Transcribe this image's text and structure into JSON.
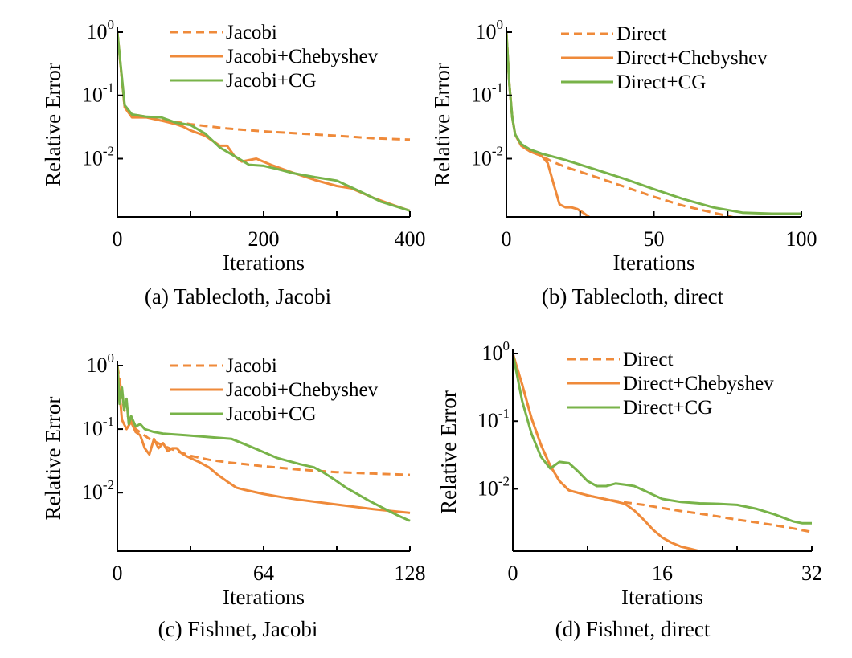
{
  "colors": {
    "orange": "#ef8a3a",
    "green": "#78b349",
    "axis": "#000000"
  },
  "chart_data": [
    {
      "type": "line",
      "caption": "(a)  Tablecloth, Jacobi",
      "xlabel": "Iterations",
      "ylabel": "Relative Error",
      "xlim": [
        0,
        400
      ],
      "ylim": [
        0.0012,
        1
      ],
      "y_scale": "log",
      "x_ticks": [
        0,
        200,
        400
      ],
      "x_minor_ticks": [
        100,
        300
      ],
      "y_ticks": [
        {
          "base": "10",
          "exp": "0",
          "value": 1
        },
        {
          "base": "10",
          "exp": "-1",
          "value": 0.1
        },
        {
          "base": "10",
          "exp": "-2",
          "value": 0.01
        }
      ],
      "grid": false,
      "legend": "top-right",
      "series": [
        {
          "name": "Jacobi",
          "style": "dashed",
          "color": "orange",
          "x": [
            0,
            10,
            20,
            40,
            60,
            80,
            100,
            150,
            200,
            250,
            300,
            350,
            400
          ],
          "y": [
            1,
            0.065,
            0.05,
            0.046,
            0.042,
            0.038,
            0.035,
            0.03,
            0.027,
            0.025,
            0.023,
            0.021,
            0.02
          ]
        },
        {
          "name": "Jacobi+Chebyshev",
          "style": "solid",
          "color": "orange",
          "x": [
            0,
            10,
            20,
            40,
            60,
            80,
            90,
            100,
            120,
            140,
            150,
            160,
            170,
            190,
            210,
            240,
            270,
            300,
            320,
            350,
            380,
            400
          ],
          "y": [
            1,
            0.065,
            0.045,
            0.045,
            0.04,
            0.035,
            0.032,
            0.028,
            0.023,
            0.016,
            0.016,
            0.011,
            0.009,
            0.01,
            0.008,
            0.006,
            0.0046,
            0.0037,
            0.0034,
            0.0024,
            0.0018,
            0.0015
          ]
        },
        {
          "name": "Jacobi+CG",
          "style": "solid",
          "color": "green",
          "x": [
            0,
            10,
            20,
            40,
            60,
            80,
            100,
            120,
            140,
            160,
            180,
            200,
            220,
            240,
            270,
            300,
            330,
            360,
            400
          ],
          "y": [
            1,
            0.07,
            0.05,
            0.046,
            0.045,
            0.037,
            0.034,
            0.025,
            0.015,
            0.011,
            0.008,
            0.0077,
            0.0068,
            0.0059,
            0.0051,
            0.0045,
            0.0031,
            0.0021,
            0.0015
          ]
        }
      ]
    },
    {
      "type": "line",
      "caption": "(b)  Tablecloth, direct",
      "xlabel": "Iterations",
      "ylabel": "Relative Error",
      "xlim": [
        0,
        100
      ],
      "ylim": [
        0.0012,
        1
      ],
      "y_scale": "log",
      "x_ticks": [
        0,
        50,
        100
      ],
      "x_minor_ticks": [
        25,
        75
      ],
      "y_ticks": [
        {
          "base": "10",
          "exp": "0",
          "value": 1
        },
        {
          "base": "10",
          "exp": "-1",
          "value": 0.1
        },
        {
          "base": "10",
          "exp": "-2",
          "value": 0.01
        }
      ],
      "grid": false,
      "legend": "top-right",
      "series": [
        {
          "name": "Direct",
          "style": "dashed",
          "color": "orange",
          "x": [
            0,
            1,
            2,
            3,
            5,
            8,
            12,
            15,
            20,
            30,
            40,
            50,
            60,
            70,
            80
          ],
          "y": [
            1,
            0.15,
            0.045,
            0.024,
            0.016,
            0.013,
            0.011,
            0.0092,
            0.0074,
            0.0052,
            0.0036,
            0.0025,
            0.0018,
            0.0014,
            0.0011
          ]
        },
        {
          "name": "Direct+Chebyshev",
          "style": "solid",
          "color": "orange",
          "x": [
            0,
            1,
            2,
            3,
            5,
            8,
            12,
            14,
            16,
            18,
            20,
            22,
            24,
            26,
            28,
            29
          ],
          "y": [
            1,
            0.15,
            0.045,
            0.024,
            0.016,
            0.013,
            0.011,
            0.0085,
            0.004,
            0.0019,
            0.0017,
            0.0017,
            0.0016,
            0.0014,
            0.0012,
            0.0011
          ]
        },
        {
          "name": "Direct+CG",
          "style": "solid",
          "color": "green",
          "x": [
            0,
            1,
            2,
            3,
            5,
            8,
            12,
            15,
            20,
            30,
            40,
            50,
            60,
            70,
            80,
            90,
            100
          ],
          "y": [
            1,
            0.15,
            0.045,
            0.024,
            0.017,
            0.014,
            0.012,
            0.011,
            0.0095,
            0.0068,
            0.0048,
            0.0033,
            0.0023,
            0.0017,
            0.0014,
            0.00135,
            0.00135
          ]
        }
      ]
    },
    {
      "type": "line",
      "caption": "(c)  Fishnet, Jacobi",
      "xlabel": "Iterations",
      "ylabel": "Relative Error",
      "xlim": [
        0,
        128
      ],
      "ylim": [
        0.0012,
        1
      ],
      "y_scale": "log",
      "x_ticks": [
        0,
        64,
        128
      ],
      "x_minor_ticks": [
        32,
        96
      ],
      "y_ticks": [
        {
          "base": "10",
          "exp": "0",
          "value": 1
        },
        {
          "base": "10",
          "exp": "-1",
          "value": 0.1
        },
        {
          "base": "10",
          "exp": "-2",
          "value": 0.01
        }
      ],
      "grid": false,
      "legend": "top-right",
      "series": [
        {
          "name": "Jacobi",
          "style": "dashed",
          "color": "orange",
          "x": [
            0,
            3,
            8,
            14,
            20,
            26,
            32,
            40,
            48,
            56,
            64,
            80,
            96,
            112,
            128
          ],
          "y": [
            1,
            0.2,
            0.1,
            0.07,
            0.055,
            0.045,
            0.038,
            0.033,
            0.03,
            0.028,
            0.026,
            0.023,
            0.021,
            0.02,
            0.019
          ]
        },
        {
          "name": "Jacobi+Chebyshev",
          "style": "solid",
          "color": "orange",
          "x": [
            0,
            2,
            4,
            6,
            8,
            10,
            12,
            14,
            16,
            18,
            20,
            22,
            24,
            26,
            28,
            30,
            32,
            36,
            40,
            44,
            48,
            52,
            56,
            64,
            72,
            80,
            96,
            112,
            128
          ],
          "y": [
            1,
            0.14,
            0.1,
            0.13,
            0.09,
            0.08,
            0.05,
            0.04,
            0.07,
            0.05,
            0.06,
            0.045,
            0.05,
            0.05,
            0.042,
            0.038,
            0.035,
            0.03,
            0.025,
            0.019,
            0.015,
            0.012,
            0.011,
            0.0095,
            0.0085,
            0.0077,
            0.0065,
            0.0055,
            0.0048
          ]
        },
        {
          "name": "Jacobi+CG",
          "style": "solid",
          "color": "green",
          "x": [
            0,
            1,
            2,
            3,
            4,
            5,
            6,
            8,
            10,
            12,
            16,
            20,
            30,
            40,
            50,
            60,
            70,
            80,
            86,
            90,
            95,
            100,
            105,
            110,
            116,
            122,
            128
          ],
          "y": [
            1,
            0.25,
            0.45,
            0.2,
            0.3,
            0.12,
            0.16,
            0.11,
            0.12,
            0.1,
            0.09,
            0.085,
            0.08,
            0.075,
            0.07,
            0.05,
            0.035,
            0.028,
            0.025,
            0.021,
            0.016,
            0.012,
            0.0095,
            0.0075,
            0.0058,
            0.0045,
            0.0036
          ]
        }
      ]
    },
    {
      "type": "line",
      "caption": "(d)  Fishnet, direct",
      "xlabel": "Iterations",
      "ylabel": "Relative Error",
      "xlim": [
        0,
        32
      ],
      "ylim": [
        0.0012,
        1
      ],
      "y_scale": "log",
      "x_ticks": [
        0,
        16,
        32
      ],
      "x_minor_ticks": [
        8,
        24
      ],
      "y_ticks": [
        {
          "base": "10",
          "exp": "0",
          "value": 1
        },
        {
          "base": "10",
          "exp": "-1",
          "value": 0.1
        },
        {
          "base": "10",
          "exp": "-2",
          "value": 0.01
        }
      ],
      "grid": false,
      "legend": "top-right",
      "series": [
        {
          "name": "Direct",
          "style": "dashed",
          "color": "orange",
          "x": [
            0,
            1,
            2,
            3,
            4,
            5,
            6,
            8,
            10,
            12,
            14,
            16,
            18,
            20,
            22,
            24,
            26,
            28,
            30,
            32
          ],
          "y": [
            1,
            0.35,
            0.11,
            0.045,
            0.022,
            0.013,
            0.0095,
            0.008,
            0.007,
            0.0063,
            0.0058,
            0.0052,
            0.0047,
            0.0043,
            0.0039,
            0.0035,
            0.0032,
            0.0029,
            0.0026,
            0.0023
          ]
        },
        {
          "name": "Direct+Chebyshev",
          "style": "solid",
          "color": "orange",
          "x": [
            0,
            1,
            2,
            3,
            4,
            5,
            6,
            8,
            10,
            12,
            13,
            14,
            15,
            16,
            17,
            18,
            19,
            20,
            20.5
          ],
          "y": [
            1,
            0.35,
            0.11,
            0.045,
            0.022,
            0.013,
            0.0095,
            0.008,
            0.007,
            0.006,
            0.0048,
            0.0035,
            0.0025,
            0.0019,
            0.0016,
            0.0014,
            0.0013,
            0.0012,
            0.0011
          ]
        },
        {
          "name": "Direct+CG",
          "style": "solid",
          "color": "green",
          "x": [
            0,
            1,
            2,
            3,
            4,
            5,
            6,
            7,
            8,
            9,
            10,
            11,
            12,
            13,
            14,
            15,
            16,
            18,
            20,
            22,
            24,
            26,
            28,
            30,
            31,
            32
          ],
          "y": [
            1,
            0.2,
            0.065,
            0.03,
            0.02,
            0.025,
            0.024,
            0.018,
            0.013,
            0.011,
            0.011,
            0.012,
            0.0115,
            0.011,
            0.0095,
            0.0082,
            0.0071,
            0.0064,
            0.0061,
            0.006,
            0.0058,
            0.0051,
            0.0042,
            0.0033,
            0.0031,
            0.0031
          ]
        }
      ]
    }
  ]
}
